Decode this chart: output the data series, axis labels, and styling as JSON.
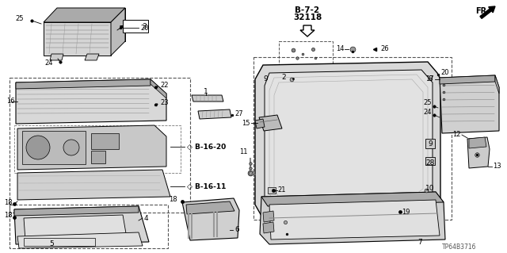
{
  "bg_color": "#ffffff",
  "part_code_line1": "B-7-2",
  "part_code_line2": "32118",
  "fr_label": "FR.",
  "catalog_number": "TP64B3716",
  "text_color": "#000000",
  "gray_fill": "#cccccc",
  "dark_gray": "#888888",
  "light_gray": "#e0e0e0",
  "mid_gray": "#aaaaaa"
}
